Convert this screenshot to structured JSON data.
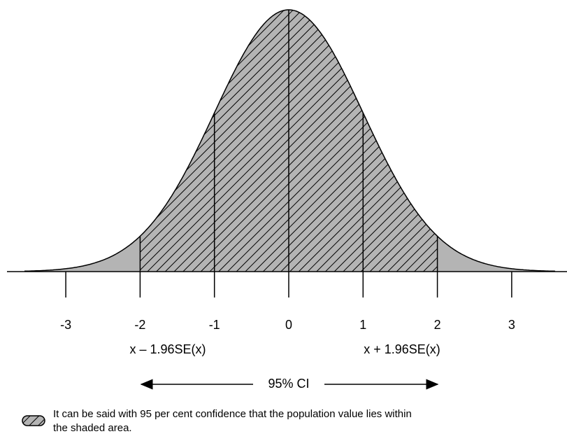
{
  "ticks": [
    -3,
    -2,
    -1,
    0,
    1,
    2,
    3
  ],
  "bounds": {
    "lower": "x – 1.96SE(x)",
    "upper": "x + 1.96SE(x)"
  },
  "interval_label": "95% CI",
  "legend": {
    "lines": [
      "It can be said with 95 per cent confidence that the population value lies within",
      "the shaded area."
    ]
  }
}
